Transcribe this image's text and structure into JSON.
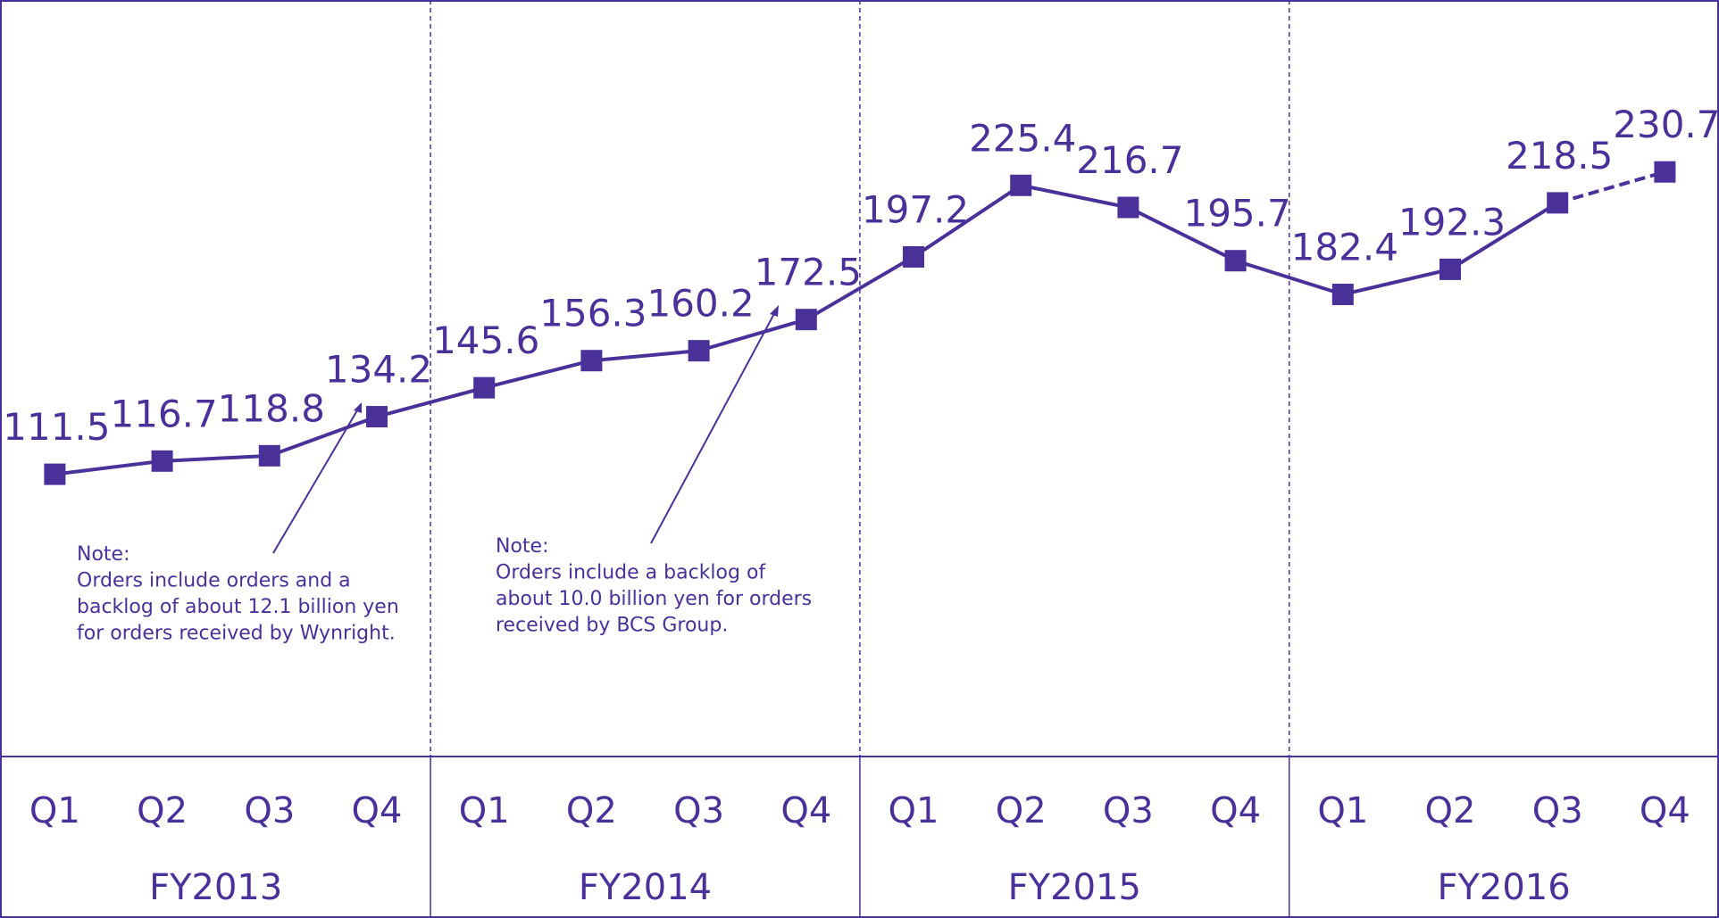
{
  "chart_data": {
    "type": "line",
    "categories": [
      "Q1",
      "Q2",
      "Q3",
      "Q4",
      "Q1",
      "Q2",
      "Q3",
      "Q4",
      "Q1",
      "Q2",
      "Q3",
      "Q4",
      "Q1",
      "Q2",
      "Q3",
      "Q4"
    ],
    "groups": [
      "FY2013",
      "FY2014",
      "FY2015",
      "FY2016"
    ],
    "values": [
      111.5,
      116.7,
      118.8,
      134.2,
      145.6,
      156.3,
      160.2,
      172.5,
      197.2,
      225.4,
      216.7,
      195.7,
      182.4,
      192.3,
      218.5,
      230.7
    ],
    "color": "#4a3199",
    "dashed_segments": [
      14
    ],
    "annotations": [
      {
        "lines": [
          "Note:",
          "Orders include orders and a",
          "backlog of about 12.1 billion yen",
          "for orders received by Wynright."
        ]
      },
      {
        "lines": [
          "Note:",
          "Orders include a backlog of",
          "about 10.0 billion yen for orders",
          "received by BCS Group."
        ]
      }
    ]
  }
}
